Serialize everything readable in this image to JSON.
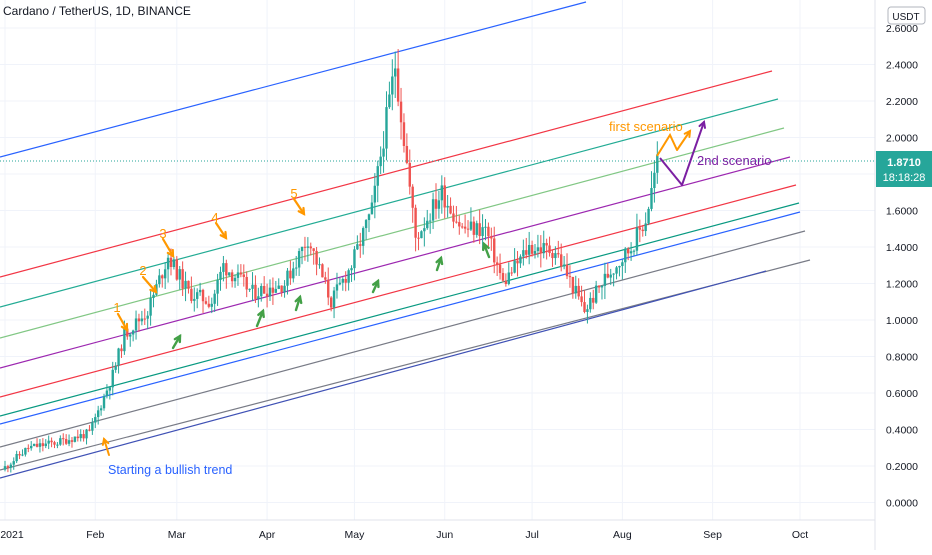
{
  "symbol_title": "Cardano / TetherUS, 1D, BINANCE",
  "price_axis": {
    "currency_badge": "USDT",
    "ticks": [
      "2.6000",
      "2.4000",
      "2.2000",
      "2.0000",
      "1.8000",
      "1.6000",
      "1.4000",
      "1.2000",
      "1.0000",
      "0.8000",
      "0.6000",
      "0.4000",
      "0.2000",
      "0.0000"
    ],
    "current_price": "1.8710",
    "countdown": "18:18:28",
    "current_price_color": "#26a69a"
  },
  "time_axis": {
    "ticks": [
      "2021",
      "Feb",
      "Mar",
      "Apr",
      "May",
      "Jun",
      "Jul",
      "Aug",
      "Sep",
      "Oct"
    ]
  },
  "annotations": {
    "first_scenario": "first scenario",
    "second_scenario": "2nd scenario",
    "bullish_trend": "Starting a bullish trend",
    "wave_labels": [
      "1",
      "2",
      "3",
      "4",
      "5"
    ]
  },
  "colors": {
    "up_candle": "#26a69a",
    "down_candle": "#ef5350",
    "orange": "#ff9800",
    "purple": "#7b1fa2",
    "blue_text": "#2962ff",
    "green_arrow": "#43a047"
  },
  "chart_data": {
    "type": "candlestick",
    "title": "Cardano / TetherUS, 1D, BINANCE",
    "y_unit": "USDT",
    "ylim": [
      -0.1,
      2.7
    ],
    "x_range": [
      "2021-01-01",
      "2021-10-01"
    ],
    "last_price": 1.871,
    "price_path_approx": [
      {
        "date": "2021-01-01",
        "close": 0.18
      },
      {
        "date": "2021-01-10",
        "close": 0.3
      },
      {
        "date": "2021-01-20",
        "close": 0.33
      },
      {
        "date": "2021-01-31",
        "close": 0.38
      },
      {
        "date": "2021-02-08",
        "close": 0.7
      },
      {
        "date": "2021-02-12",
        "close": 0.92
      },
      {
        "date": "2021-02-20",
        "close": 1.05
      },
      {
        "date": "2021-02-27",
        "close": 1.35
      },
      {
        "date": "2021-03-06",
        "close": 1.15
      },
      {
        "date": "2021-03-14",
        "close": 1.1
      },
      {
        "date": "2021-03-18",
        "close": 1.3
      },
      {
        "date": "2021-03-28",
        "close": 1.15
      },
      {
        "date": "2021-04-08",
        "close": 1.2
      },
      {
        "date": "2021-04-16",
        "close": 1.45
      },
      {
        "date": "2021-04-24",
        "close": 1.1
      },
      {
        "date": "2021-05-01",
        "close": 1.3
      },
      {
        "date": "2021-05-08",
        "close": 1.6
      },
      {
        "date": "2021-05-16",
        "close": 2.4
      },
      {
        "date": "2021-05-23",
        "close": 1.45
      },
      {
        "date": "2021-06-01",
        "close": 1.7
      },
      {
        "date": "2021-06-08",
        "close": 1.5
      },
      {
        "date": "2021-06-16",
        "close": 1.5
      },
      {
        "date": "2021-06-22",
        "close": 1.2
      },
      {
        "date": "2021-07-01",
        "close": 1.4
      },
      {
        "date": "2021-07-10",
        "close": 1.38
      },
      {
        "date": "2021-07-20",
        "close": 1.05
      },
      {
        "date": "2021-07-28",
        "close": 1.25
      },
      {
        "date": "2021-08-05",
        "close": 1.4
      },
      {
        "date": "2021-08-10",
        "close": 1.55
      },
      {
        "date": "2021-08-14",
        "close": 1.871
      }
    ],
    "scenario_arrows": [
      {
        "name": "first scenario",
        "target_date": "2021-08-20",
        "target_price": 2.08
      },
      {
        "name": "2nd scenario",
        "target_date": "2021-08-23",
        "target_price": 2.08
      }
    ]
  }
}
